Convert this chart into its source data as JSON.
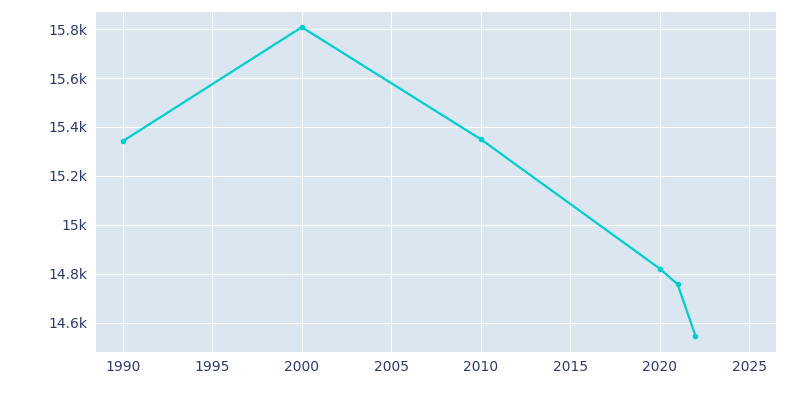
{
  "years": [
    1990,
    2000,
    2010,
    2020,
    2021,
    2022
  ],
  "population": [
    15342,
    15808,
    15350,
    14821,
    14757,
    14546
  ],
  "line_color": "#00CED1",
  "axes_bg_color": "#dce6f0",
  "fig_bg_color": "#ffffff",
  "grid_color": "#ffffff",
  "text_color": "#2b3a6e",
  "xlim": [
    1988.5,
    2026.5
  ],
  "ylim": [
    14480,
    15870
  ],
  "xticks": [
    1990,
    1995,
    2000,
    2005,
    2010,
    2015,
    2020,
    2025
  ],
  "ytick_values": [
    14600,
    14800,
    15000,
    15200,
    15400,
    15600,
    15800
  ],
  "ytick_labels": [
    "14.6k",
    "14.8k",
    "15k",
    "15.2k",
    "15.4k",
    "15.6k",
    "15.8k"
  ]
}
